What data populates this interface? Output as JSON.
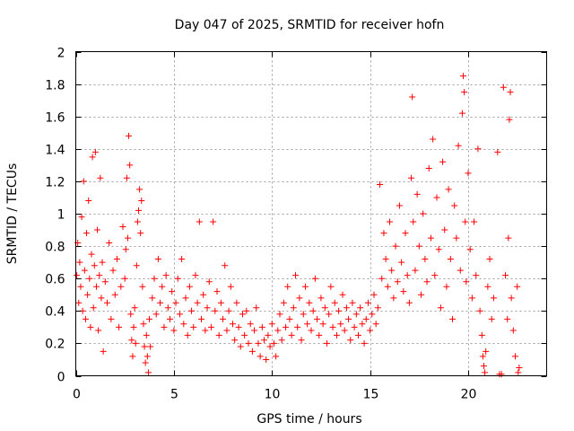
{
  "chart_data": {
    "type": "scatter",
    "title": "Day 047 of 2025, SRMTID for receiver hofn",
    "xlabel": "GPS time / hours",
    "ylabel": "SRMTID / TECUs",
    "xlim": [
      0,
      24
    ],
    "ylim": [
      0,
      2
    ],
    "xticks": [
      0,
      5,
      10,
      15,
      20
    ],
    "xtick_labels": [
      "0",
      "5",
      "10",
      "15",
      "20"
    ],
    "yticks": [
      0,
      0.2,
      0.4,
      0.6,
      0.8,
      1,
      1.2,
      1.4,
      1.6,
      1.8,
      2
    ],
    "ytick_labels": [
      "0",
      "0.2",
      "0.4",
      "0.6",
      "0.8",
      "1",
      "1.2",
      "1.4",
      "1.6",
      "1.8",
      "2"
    ],
    "grid": true,
    "marker": "plus",
    "color": "#ff0000",
    "series": [
      {
        "name": "SRMTID",
        "points": [
          [
            0.05,
            0.62
          ],
          [
            0.1,
            0.82
          ],
          [
            0.15,
            0.45
          ],
          [
            0.2,
            0.7
          ],
          [
            0.25,
            0.55
          ],
          [
            0.3,
            0.98
          ],
          [
            0.35,
            0.4
          ],
          [
            0.4,
            1.2
          ],
          [
            0.45,
            0.65
          ],
          [
            0.5,
            0.35
          ],
          [
            0.55,
            0.88
          ],
          [
            0.6,
            0.5
          ],
          [
            0.65,
            1.08
          ],
          [
            0.7,
            0.6
          ],
          [
            0.75,
            0.3
          ],
          [
            0.8,
            0.75
          ],
          [
            0.85,
            1.35
          ],
          [
            0.9,
            0.42
          ],
          [
            0.95,
            0.68
          ],
          [
            1.0,
            1.38
          ],
          [
            1.05,
            0.55
          ],
          [
            1.1,
            0.9
          ],
          [
            1.15,
            0.28
          ],
          [
            1.2,
            0.62
          ],
          [
            1.25,
            1.22
          ],
          [
            1.3,
            0.48
          ],
          [
            1.35,
            0.7
          ],
          [
            1.4,
            0.15
          ],
          [
            1.5,
            0.58
          ],
          [
            1.6,
            0.45
          ],
          [
            1.7,
            0.82
          ],
          [
            1.8,
            0.35
          ],
          [
            1.9,
            0.65
          ],
          [
            2.0,
            0.5
          ],
          [
            2.1,
            0.72
          ],
          [
            2.2,
            0.3
          ],
          [
            2.3,
            0.55
          ],
          [
            2.4,
            0.92
          ],
          [
            2.5,
            0.6
          ],
          [
            2.55,
            0.78
          ],
          [
            2.6,
            1.22
          ],
          [
            2.65,
            0.85
          ],
          [
            2.7,
            1.48
          ],
          [
            2.75,
            1.3
          ],
          [
            2.8,
            0.38
          ],
          [
            2.85,
            0.22
          ],
          [
            2.9,
            0.12
          ],
          [
            2.95,
            0.3
          ],
          [
            3.0,
            0.42
          ],
          [
            3.05,
            0.2
          ],
          [
            3.1,
            0.68
          ],
          [
            3.15,
            0.95
          ],
          [
            3.2,
            1.02
          ],
          [
            3.25,
            1.15
          ],
          [
            3.3,
            0.88
          ],
          [
            3.35,
            1.08
          ],
          [
            3.4,
            0.55
          ],
          [
            3.45,
            0.32
          ],
          [
            3.5,
            0.18
          ],
          [
            3.55,
            0.08
          ],
          [
            3.6,
            0.25
          ],
          [
            3.65,
            0.12
          ],
          [
            3.7,
            0.02
          ],
          [
            3.75,
            0.35
          ],
          [
            3.8,
            0.18
          ],
          [
            3.9,
            0.48
          ],
          [
            4.0,
            0.6
          ],
          [
            4.1,
            0.38
          ],
          [
            4.2,
            0.72
          ],
          [
            4.3,
            0.45
          ],
          [
            4.4,
            0.55
          ],
          [
            4.5,
            0.3
          ],
          [
            4.6,
            0.62
          ],
          [
            4.7,
            0.42
          ],
          [
            4.8,
            0.35
          ],
          [
            4.9,
            0.52
          ],
          [
            5.0,
            0.28
          ],
          [
            5.1,
            0.45
          ],
          [
            5.2,
            0.6
          ],
          [
            5.3,
            0.38
          ],
          [
            5.4,
            0.72
          ],
          [
            5.5,
            0.32
          ],
          [
            5.6,
            0.48
          ],
          [
            5.7,
            0.25
          ],
          [
            5.8,
            0.55
          ],
          [
            5.9,
            0.4
          ],
          [
            6.0,
            0.3
          ],
          [
            6.1,
            0.62
          ],
          [
            6.2,
            0.45
          ],
          [
            6.3,
            0.95
          ],
          [
            6.4,
            0.35
          ],
          [
            6.5,
            0.5
          ],
          [
            6.6,
            0.28
          ],
          [
            6.7,
            0.42
          ],
          [
            6.8,
            0.58
          ],
          [
            6.9,
            0.3
          ],
          [
            7.0,
            0.95
          ],
          [
            7.1,
            0.4
          ],
          [
            7.2,
            0.52
          ],
          [
            7.3,
            0.25
          ],
          [
            7.4,
            0.45
          ],
          [
            7.5,
            0.35
          ],
          [
            7.6,
            0.68
          ],
          [
            7.7,
            0.28
          ],
          [
            7.8,
            0.4
          ],
          [
            7.9,
            0.55
          ],
          [
            8.0,
            0.32
          ],
          [
            8.1,
            0.22
          ],
          [
            8.2,
            0.45
          ],
          [
            8.3,
            0.3
          ],
          [
            8.4,
            0.18
          ],
          [
            8.5,
            0.38
          ],
          [
            8.6,
            0.25
          ],
          [
            8.7,
            0.4
          ],
          [
            8.8,
            0.2
          ],
          [
            8.9,
            0.32
          ],
          [
            9.0,
            0.15
          ],
          [
            9.1,
            0.28
          ],
          [
            9.2,
            0.42
          ],
          [
            9.3,
            0.2
          ],
          [
            9.4,
            0.12
          ],
          [
            9.5,
            0.3
          ],
          [
            9.6,
            0.22
          ],
          [
            9.7,
            0.1
          ],
          [
            9.8,
            0.25
          ],
          [
            9.9,
            0.18
          ],
          [
            10.0,
            0.32
          ],
          [
            10.1,
            0.2
          ],
          [
            10.2,
            0.12
          ],
          [
            10.3,
            0.28
          ],
          [
            10.4,
            0.38
          ],
          [
            10.5,
            0.22
          ],
          [
            10.6,
            0.45
          ],
          [
            10.7,
            0.3
          ],
          [
            10.8,
            0.55
          ],
          [
            10.9,
            0.35
          ],
          [
            11.0,
            0.25
          ],
          [
            11.1,
            0.42
          ],
          [
            11.2,
            0.62
          ],
          [
            11.3,
            0.3
          ],
          [
            11.4,
            0.48
          ],
          [
            11.5,
            0.22
          ],
          [
            11.6,
            0.38
          ],
          [
            11.7,
            0.55
          ],
          [
            11.8,
            0.32
          ],
          [
            11.9,
            0.45
          ],
          [
            12.0,
            0.28
          ],
          [
            12.1,
            0.4
          ],
          [
            12.2,
            0.6
          ],
          [
            12.3,
            0.35
          ],
          [
            12.4,
            0.25
          ],
          [
            12.5,
            0.48
          ],
          [
            12.6,
            0.32
          ],
          [
            12.7,
            0.42
          ],
          [
            12.8,
            0.2
          ],
          [
            12.9,
            0.38
          ],
          [
            13.0,
            0.55
          ],
          [
            13.1,
            0.3
          ],
          [
            13.2,
            0.45
          ],
          [
            13.3,
            0.25
          ],
          [
            13.4,
            0.4
          ],
          [
            13.5,
            0.32
          ],
          [
            13.6,
            0.5
          ],
          [
            13.7,
            0.28
          ],
          [
            13.8,
            0.42
          ],
          [
            13.9,
            0.35
          ],
          [
            14.0,
            0.22
          ],
          [
            14.1,
            0.45
          ],
          [
            14.2,
            0.3
          ],
          [
            14.3,
            0.38
          ],
          [
            14.4,
            0.25
          ],
          [
            14.5,
            0.42
          ],
          [
            14.6,
            0.32
          ],
          [
            14.7,
            0.2
          ],
          [
            14.8,
            0.35
          ],
          [
            14.9,
            0.45
          ],
          [
            15.0,
            0.28
          ],
          [
            15.1,
            0.38
          ],
          [
            15.2,
            0.5
          ],
          [
            15.3,
            0.32
          ],
          [
            15.4,
            0.42
          ],
          [
            15.5,
            1.18
          ],
          [
            15.6,
            0.6
          ],
          [
            15.7,
            0.88
          ],
          [
            15.8,
            0.72
          ],
          [
            15.9,
            0.55
          ],
          [
            16.0,
            0.95
          ],
          [
            16.1,
            0.65
          ],
          [
            16.2,
            0.48
          ],
          [
            16.3,
            0.8
          ],
          [
            16.4,
            0.58
          ],
          [
            16.5,
            1.05
          ],
          [
            16.6,
            0.7
          ],
          [
            16.7,
            0.52
          ],
          [
            16.8,
            0.88
          ],
          [
            16.9,
            0.62
          ],
          [
            17.0,
            0.45
          ],
          [
            17.1,
            1.22
          ],
          [
            17.15,
            1.72
          ],
          [
            17.2,
            0.95
          ],
          [
            17.3,
            0.65
          ],
          [
            17.4,
            1.12
          ],
          [
            17.5,
            0.8
          ],
          [
            17.6,
            0.5
          ],
          [
            17.7,
            1.0
          ],
          [
            17.8,
            0.72
          ],
          [
            17.9,
            0.58
          ],
          [
            18.0,
            1.28
          ],
          [
            18.1,
            0.85
          ],
          [
            18.2,
            1.46
          ],
          [
            18.3,
            0.62
          ],
          [
            18.4,
            1.1
          ],
          [
            18.5,
            0.78
          ],
          [
            18.6,
            0.42
          ],
          [
            18.7,
            1.32
          ],
          [
            18.8,
            0.9
          ],
          [
            18.9,
            0.55
          ],
          [
            19.0,
            1.15
          ],
          [
            19.1,
            0.72
          ],
          [
            19.2,
            0.35
          ],
          [
            19.3,
            1.05
          ],
          [
            19.4,
            0.85
          ],
          [
            19.5,
            1.42
          ],
          [
            19.6,
            0.65
          ],
          [
            19.7,
            1.62
          ],
          [
            19.75,
            1.85
          ],
          [
            19.8,
            1.75
          ],
          [
            19.85,
            0.95
          ],
          [
            19.9,
            0.58
          ],
          [
            20.0,
            1.25
          ],
          [
            20.1,
            0.78
          ],
          [
            20.2,
            0.48
          ],
          [
            20.3,
            0.95
          ],
          [
            20.4,
            0.62
          ],
          [
            20.5,
            1.4
          ],
          [
            20.6,
            0.4
          ],
          [
            20.7,
            0.25
          ],
          [
            20.75,
            0.12
          ],
          [
            20.8,
            0.06
          ],
          [
            20.85,
            0.02
          ],
          [
            20.9,
            0.15
          ],
          [
            21.0,
            0.55
          ],
          [
            21.1,
            0.72
          ],
          [
            21.2,
            0.35
          ],
          [
            21.3,
            0.48
          ],
          [
            21.5,
            1.38
          ],
          [
            21.6,
            0.01
          ],
          [
            21.7,
            0.01
          ],
          [
            21.8,
            1.78
          ],
          [
            21.9,
            0.62
          ],
          [
            22.0,
            0.35
          ],
          [
            22.05,
            0.85
          ],
          [
            22.1,
            1.58
          ],
          [
            22.15,
            1.75
          ],
          [
            22.2,
            0.48
          ],
          [
            22.3,
            0.28
          ],
          [
            22.4,
            0.12
          ],
          [
            22.5,
            0.55
          ],
          [
            22.55,
            0.02
          ],
          [
            22.6,
            0.05
          ]
        ]
      }
    ]
  }
}
